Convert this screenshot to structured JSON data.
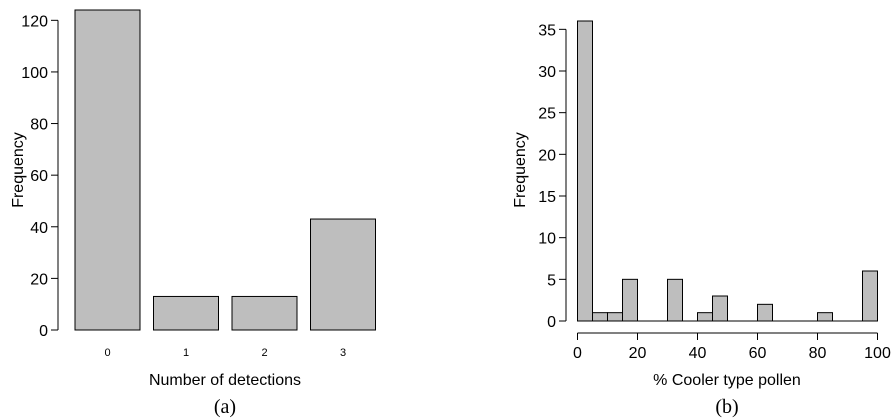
{
  "chart_data": [
    {
      "type": "bar",
      "panel_label": "(a)",
      "title": "",
      "xlabel": "Number of detections",
      "ylabel": "Frequency",
      "categories": [
        "0",
        "1",
        "2",
        "3"
      ],
      "values": [
        124,
        13,
        13,
        43
      ],
      "ylim": [
        0,
        124
      ],
      "yticks": [
        0,
        20,
        40,
        60,
        80,
        100,
        120
      ],
      "grid": false,
      "bar_color": "#bebebe"
    },
    {
      "type": "bar",
      "panel_label": "(b)",
      "title": "",
      "xlabel": "% Cooler type pollen",
      "ylabel": "Frequency",
      "bin_width": 5,
      "bins": [
        {
          "x0": 0,
          "x1": 5,
          "value": 36
        },
        {
          "x0": 5,
          "x1": 10,
          "value": 1
        },
        {
          "x0": 10,
          "x1": 15,
          "value": 1
        },
        {
          "x0": 15,
          "x1": 20,
          "value": 5
        },
        {
          "x0": 20,
          "x1": 25,
          "value": 0
        },
        {
          "x0": 25,
          "x1": 30,
          "value": 0
        },
        {
          "x0": 30,
          "x1": 35,
          "value": 5
        },
        {
          "x0": 35,
          "x1": 40,
          "value": 0
        },
        {
          "x0": 40,
          "x1": 45,
          "value": 1
        },
        {
          "x0": 45,
          "x1": 50,
          "value": 3
        },
        {
          "x0": 50,
          "x1": 55,
          "value": 0
        },
        {
          "x0": 55,
          "x1": 60,
          "value": 0
        },
        {
          "x0": 60,
          "x1": 65,
          "value": 2
        },
        {
          "x0": 65,
          "x1": 70,
          "value": 0
        },
        {
          "x0": 70,
          "x1": 75,
          "value": 0
        },
        {
          "x0": 75,
          "x1": 80,
          "value": 0
        },
        {
          "x0": 80,
          "x1": 85,
          "value": 1
        },
        {
          "x0": 85,
          "x1": 90,
          "value": 0
        },
        {
          "x0": 90,
          "x1": 95,
          "value": 0
        },
        {
          "x0": 95,
          "x1": 100,
          "value": 6
        }
      ],
      "xlim": [
        0,
        100
      ],
      "ylim": [
        0,
        36
      ],
      "xticks": [
        0,
        20,
        40,
        60,
        80,
        100
      ],
      "yticks": [
        0,
        5,
        10,
        15,
        20,
        25,
        30,
        35
      ],
      "grid": false,
      "bar_color": "#bebebe"
    }
  ]
}
